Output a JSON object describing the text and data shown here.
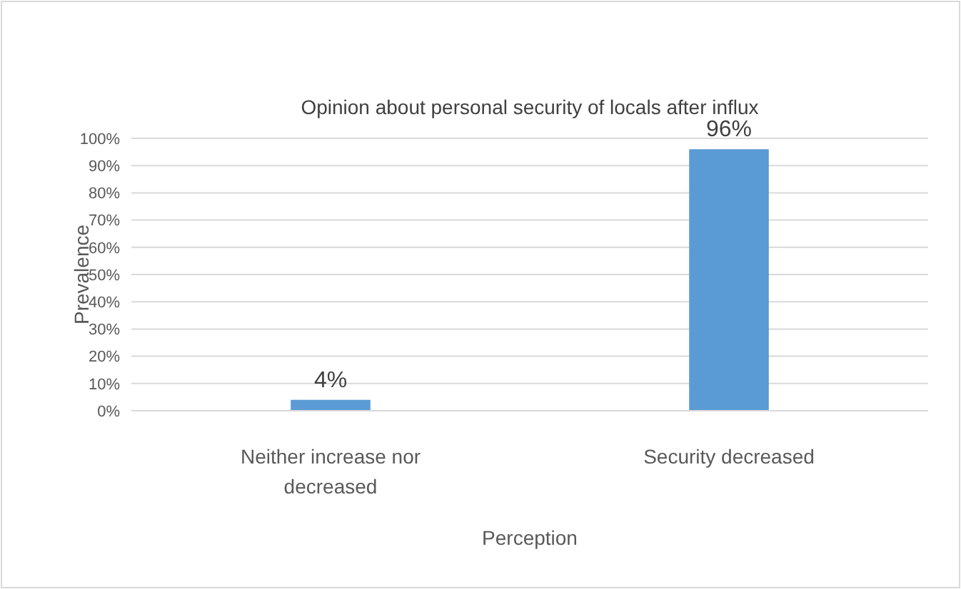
{
  "chart_data": {
    "type": "bar",
    "title": "Opinion about personal security of locals after influx",
    "xlabel": "Perception",
    "ylabel": "Prevalence",
    "categories": [
      "Neither increase nor decreased",
      "Security decreased"
    ],
    "values": [
      4,
      96
    ],
    "color": "#5b9bd5",
    "value_labels": [
      "4%",
      "96%"
    ],
    "ylim": [
      0,
      100
    ],
    "yticks": [
      {
        "value": 0,
        "label": "0%"
      },
      {
        "value": 10,
        "label": "10%"
      },
      {
        "value": 20,
        "label": "20%"
      },
      {
        "value": 30,
        "label": "30%"
      },
      {
        "value": 40,
        "label": "40%"
      },
      {
        "value": 50,
        "label": "50%"
      },
      {
        "value": 60,
        "label": "60%"
      },
      {
        "value": 70,
        "label": "70%"
      },
      {
        "value": 80,
        "label": "80%"
      },
      {
        "value": 90,
        "label": "90%"
      },
      {
        "value": 100,
        "label": "100%"
      }
    ],
    "grid": "y"
  }
}
